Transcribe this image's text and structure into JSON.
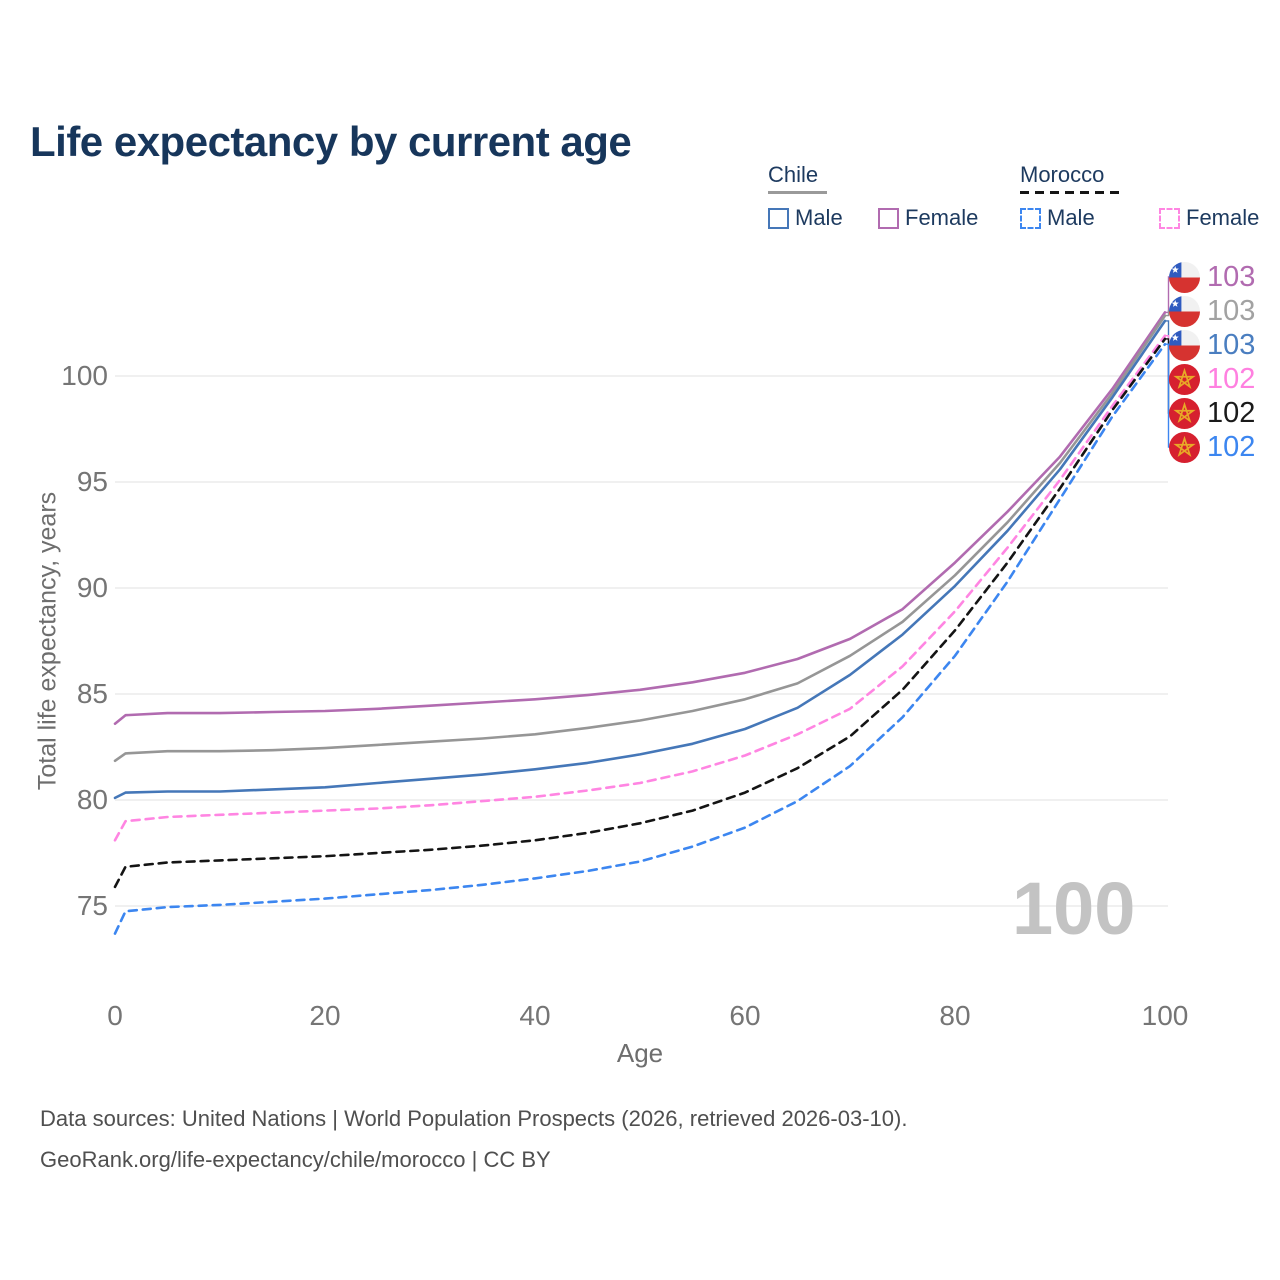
{
  "header": {
    "title": "Life expectancy by current age"
  },
  "legend": {
    "groups": [
      {
        "label": "Chile",
        "line_style": "solid",
        "items": [
          {
            "label": "Male",
            "color": "#4577b8"
          },
          {
            "label": "Female",
            "color": "#b16bb0"
          }
        ]
      },
      {
        "label": "Morocco",
        "line_style": "dashed",
        "items": [
          {
            "label": "Male",
            "color": "#3c86f0"
          },
          {
            "label": "Female",
            "color": "#ff85e2"
          }
        ]
      }
    ]
  },
  "chart_data": {
    "type": "line",
    "title": "Life expectancy by current age",
    "xlabel": "Age",
    "ylabel": "Total life expectancy, years",
    "xticks": [
      0,
      20,
      40,
      60,
      80,
      100
    ],
    "yticks": [
      75,
      80,
      85,
      90,
      95,
      100
    ],
    "xlim": [
      0,
      100
    ],
    "ylim": [
      73,
      104
    ],
    "grid": "horizontal",
    "age_indicator": "100",
    "x": [
      0,
      1,
      5,
      10,
      15,
      20,
      25,
      30,
      35,
      40,
      45,
      50,
      55,
      60,
      65,
      70,
      75,
      80,
      85,
      90,
      95,
      100
    ],
    "series": [
      {
        "id": "chile-female",
        "name": "Chile Female",
        "country": "Chile",
        "sex": "Female",
        "color": "#b16bb0",
        "dash": false,
        "values": [
          83.6,
          84.0,
          84.1,
          84.1,
          84.15,
          84.2,
          84.3,
          84.45,
          84.6,
          84.75,
          84.95,
          85.2,
          85.55,
          86.0,
          86.65,
          87.6,
          89.0,
          91.2,
          93.6,
          96.2,
          99.4,
          103.0
        ]
      },
      {
        "id": "chile-total",
        "name": "Chile Both sexes",
        "country": "Chile",
        "sex": "Both",
        "color": "#969696",
        "dash": false,
        "values": [
          81.85,
          82.2,
          82.3,
          82.3,
          82.35,
          82.45,
          82.6,
          82.75,
          82.9,
          83.1,
          83.4,
          83.75,
          84.2,
          84.75,
          85.5,
          86.8,
          88.4,
          90.6,
          93.1,
          95.9,
          99.2,
          102.85
        ]
      },
      {
        "id": "chile-male",
        "name": "Chile Male",
        "country": "Chile",
        "sex": "Male",
        "color": "#4577b8",
        "dash": false,
        "values": [
          80.1,
          80.35,
          80.4,
          80.4,
          80.5,
          80.6,
          80.8,
          81.0,
          81.2,
          81.45,
          81.75,
          82.15,
          82.65,
          83.35,
          84.35,
          85.9,
          87.8,
          90.1,
          92.7,
          95.6,
          99.0,
          102.6
        ]
      },
      {
        "id": "morocco-female",
        "name": "Morocco Female",
        "country": "Morocco",
        "sex": "Female",
        "color": "#ff85e2",
        "dash": true,
        "values": [
          78.1,
          79.0,
          79.2,
          79.3,
          79.4,
          79.5,
          79.6,
          79.75,
          79.95,
          80.15,
          80.45,
          80.8,
          81.35,
          82.1,
          83.1,
          84.3,
          86.3,
          88.9,
          91.9,
          95.1,
          98.6,
          101.9
        ]
      },
      {
        "id": "morocco-total",
        "name": "Morocco Both sexes",
        "country": "Morocco",
        "sex": "Both",
        "color": "#141414",
        "dash": true,
        "values": [
          75.9,
          76.85,
          77.05,
          77.15,
          77.25,
          77.35,
          77.5,
          77.65,
          77.85,
          78.1,
          78.45,
          78.9,
          79.5,
          80.35,
          81.5,
          83.0,
          85.2,
          88.0,
          91.2,
          94.7,
          98.4,
          101.75
        ]
      },
      {
        "id": "morocco-male",
        "name": "Morocco Male",
        "country": "Morocco",
        "sex": "Male",
        "color": "#3c86f0",
        "dash": true,
        "values": [
          73.7,
          74.75,
          74.95,
          75.05,
          75.2,
          75.35,
          75.55,
          75.75,
          76.0,
          76.3,
          76.65,
          77.1,
          77.8,
          78.7,
          79.95,
          81.6,
          83.9,
          86.8,
          90.3,
          94.2,
          98.1,
          101.5
        ]
      }
    ],
    "end_labels": [
      {
        "country": "Chile",
        "flag": "chile-flag",
        "value": "103",
        "color": "#b16bb0"
      },
      {
        "country": "Chile",
        "flag": "chile-flag",
        "value": "103",
        "color": "#a2a2a2"
      },
      {
        "country": "Chile",
        "flag": "chile-flag",
        "value": "103",
        "color": "#4a7ec0"
      },
      {
        "country": "Morocco",
        "flag": "morocco-flag",
        "value": "102",
        "color": "#ff80e0"
      },
      {
        "country": "Morocco",
        "flag": "morocco-flag",
        "value": "102",
        "color": "#1a1a1a"
      },
      {
        "country": "Morocco",
        "flag": "morocco-flag",
        "value": "102",
        "color": "#3c86f0"
      }
    ]
  },
  "footer": {
    "line1": "Data sources: United Nations | World Population Prospects (2026, retrieved 2026-03-10).",
    "line2": "GeoRank.org/life-expectancy/chile/morocco | CC BY"
  }
}
